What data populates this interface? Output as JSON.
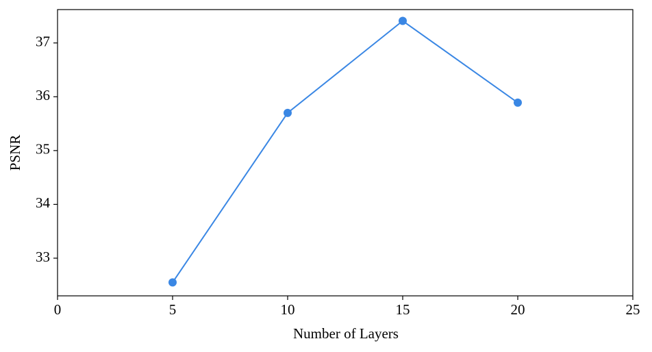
{
  "chart_data": {
    "type": "line",
    "x_label": "Number of Layers",
    "y_label": "PSNR",
    "x": [
      5,
      10,
      15,
      20
    ],
    "series": [
      {
        "color": "#3a87e4",
        "values": [
          32.55,
          35.7,
          37.41,
          35.89
        ]
      }
    ],
    "xlim": [
      0,
      25
    ],
    "xticks": [
      0,
      5,
      10,
      15,
      20,
      25
    ],
    "ylim": [
      32.3,
      37.62
    ],
    "yticks": [
      33,
      34,
      35,
      36,
      37
    ],
    "grid": false
  }
}
